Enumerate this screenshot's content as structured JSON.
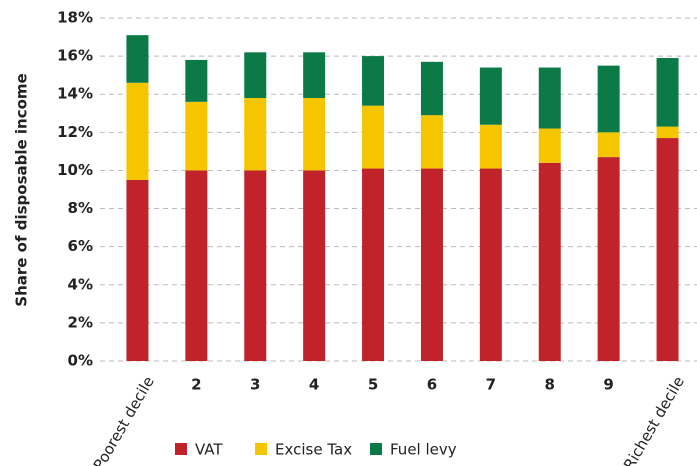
{
  "chart_data": {
    "type": "stacked_bar",
    "y_label": "Share of disposable income",
    "categories": [
      "Poorest decile",
      "2",
      "3",
      "4",
      "5",
      "6",
      "7",
      "8",
      "9",
      "Richest decile"
    ],
    "series": [
      {
        "name": "VAT",
        "color": "#c1232b",
        "values": [
          9.5,
          10,
          10,
          10,
          10.1,
          10.1,
          10.1,
          10.4,
          10.7,
          11.7
        ]
      },
      {
        "name": "Excise Tax",
        "color": "#f5c500",
        "values": [
          5.1,
          3.6,
          3.8,
          3.8,
          3.3,
          2.8,
          2.3,
          1.8,
          1.3,
          0.6
        ]
      },
      {
        "name": "Fuel levy",
        "color": "#0b7a46",
        "values": [
          2.5,
          2.2,
          2.4,
          2.4,
          2.6,
          2.8,
          3.0,
          3.2,
          3.5,
          3.6
        ]
      }
    ],
    "ylim": [
      0,
      18
    ],
    "yticks": [
      {
        "value": 0,
        "label": "0%"
      },
      {
        "value": 2,
        "label": "2%"
      },
      {
        "value": 4,
        "label": "4%"
      },
      {
        "value": 6,
        "label": "6%"
      },
      {
        "value": 8,
        "label": "8%"
      },
      {
        "value": 10,
        "label": "10%"
      },
      {
        "value": 12,
        "label": "12%"
      },
      {
        "value": 14,
        "label": "14%"
      },
      {
        "value": 16,
        "label": "16%"
      },
      {
        "value": 18,
        "label": "18%"
      }
    ],
    "grid": true,
    "legend": "bottom"
  }
}
